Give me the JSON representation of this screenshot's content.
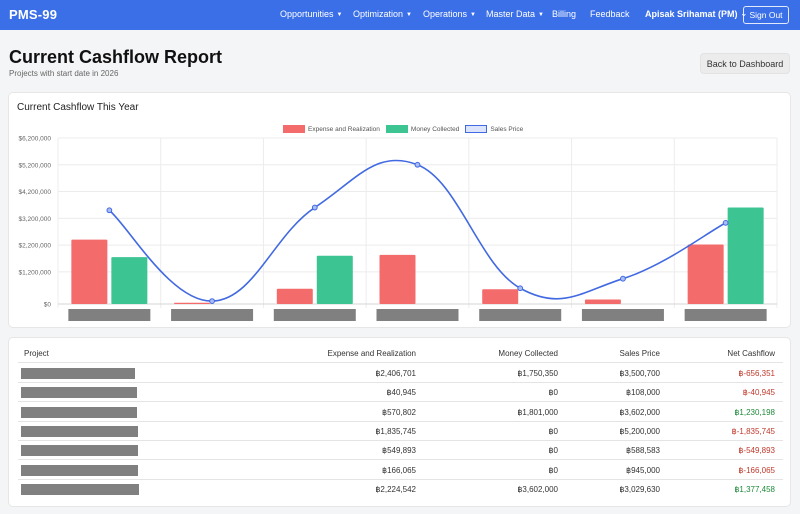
{
  "navbar": {
    "brand": "PMS-99",
    "items": [
      {
        "label": "Opportunities",
        "has_caret": true
      },
      {
        "label": "Optimization",
        "has_caret": true
      },
      {
        "label": "Operations",
        "has_caret": true
      },
      {
        "label": "Master Data",
        "has_caret": true
      },
      {
        "label": "Billing",
        "has_caret": false
      },
      {
        "label": "Feedback",
        "has_caret": false
      }
    ],
    "user": "Apisak Srihamat (PM)",
    "signout": "Sign Out",
    "color": "#3b6fe8"
  },
  "header": {
    "title": "Current Cashflow Report",
    "subtitle": "Projects with start date in 2026",
    "back_button": "Back to Dashboard"
  },
  "chart_card": {
    "title": "Current Cashflow This Year"
  },
  "chart_data": {
    "type": "bar",
    "title": "",
    "ylim": [
      0,
      6200000
    ],
    "y_ticks": [
      0,
      1200000,
      2200000,
      3200000,
      4200000,
      5200000,
      6200000
    ],
    "y_tick_labels": [
      "$0",
      "$1,200,000",
      "$2,200,000",
      "$3,200,000",
      "$4,200,000",
      "$5,200,000",
      "$6,200,000"
    ],
    "categories_redacted": true,
    "legend_position": "top",
    "grid": true,
    "series": [
      {
        "name": "Expense and Realization",
        "type": "bar",
        "color": "#f46b6b",
        "values": [
          2406701,
          40945,
          570802,
          1835745,
          549893,
          166065,
          2224542
        ]
      },
      {
        "name": "Money Collected",
        "type": "bar",
        "color": "#3cc493",
        "values": [
          1750350,
          0,
          1801000,
          0,
          0,
          0,
          3602000
        ]
      },
      {
        "name": "Sales Price",
        "type": "line",
        "color": "#4169e1",
        "values": [
          3500700,
          108000,
          3602000,
          5200000,
          588583,
          945000,
          3029630
        ]
      }
    ]
  },
  "table": {
    "headers": [
      "Project",
      "Expense and Realization",
      "Money Collected",
      "Sales Price",
      "Net Cashflow"
    ],
    "rows": [
      {
        "expense": "฿2,406,701",
        "collected": "฿1,750,350",
        "sales": "฿3,500,700",
        "net": "฿-656,351",
        "net_sign": "neg"
      },
      {
        "expense": "฿40,945",
        "collected": "฿0",
        "sales": "฿108,000",
        "net": "฿-40,945",
        "net_sign": "neg"
      },
      {
        "expense": "฿570,802",
        "collected": "฿1,801,000",
        "sales": "฿3,602,000",
        "net": "฿1,230,198",
        "net_sign": "pos"
      },
      {
        "expense": "฿1,835,745",
        "collected": "฿0",
        "sales": "฿5,200,000",
        "net": "฿-1,835,745",
        "net_sign": "neg"
      },
      {
        "expense": "฿549,893",
        "collected": "฿0",
        "sales": "฿588,583",
        "net": "฿-549,893",
        "net_sign": "neg"
      },
      {
        "expense": "฿166,065",
        "collected": "฿0",
        "sales": "฿945,000",
        "net": "฿-166,065",
        "net_sign": "neg"
      },
      {
        "expense": "฿2,224,542",
        "collected": "฿3,602,000",
        "sales": "฿3,029,630",
        "net": "฿1,377,458",
        "net_sign": "pos"
      }
    ]
  }
}
